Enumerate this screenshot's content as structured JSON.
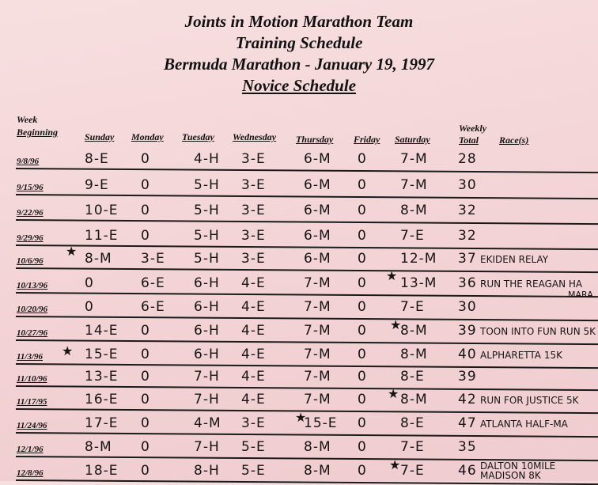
{
  "header": {
    "line1": "Joints in Motion Marathon Team",
    "line2": "Training Schedule",
    "line3": "Bermuda Marathon - January 19, 1997",
    "line4": "Novice Schedule"
  },
  "columns": {
    "week1": "Week",
    "week2": "Beginning",
    "sunday": "Sunday",
    "monday": "Monday",
    "tuesday": "Tuesday",
    "wednesday": "Wednesday",
    "thursday": "Thursday",
    "friday": "Friday",
    "saturday": "Saturday",
    "weekly1": "Weekly",
    "weekly2": "Total",
    "races": "Race(s)"
  },
  "star_glyph": "★",
  "rows": [
    {
      "week": "9/8/96",
      "sun": "8-E",
      "mon": "0",
      "tue": "4-H",
      "wed": "3-E",
      "thu": "6-M",
      "fri": "0",
      "sat": "7-M",
      "total": "28",
      "race": "",
      "race2": ""
    },
    {
      "week": "9/15/96",
      "sun": "9-E",
      "mon": "0",
      "tue": "5-H",
      "wed": "3-E",
      "thu": "6-M",
      "fri": "0",
      "sat": "7-M",
      "total": "30",
      "race": "",
      "race2": ""
    },
    {
      "week": "9/22/96",
      "sun": "10-E",
      "mon": "0",
      "tue": "5-H",
      "wed": "3-E",
      "thu": "6-M",
      "fri": "0",
      "sat": "8-M",
      "total": "32",
      "race": "",
      "race2": ""
    },
    {
      "week": "9/29/96",
      "sun": "11-E",
      "mon": "0",
      "tue": "5-H",
      "wed": "3-E",
      "thu": "6-M",
      "fri": "0",
      "sat": "7-E",
      "total": "32",
      "race": "",
      "race2": ""
    },
    {
      "week": "10/6/96",
      "sun": "8-M",
      "mon": "3-E",
      "tue": "5-H",
      "wed": "3-E",
      "thu": "6-M",
      "fri": "0",
      "sat": "12-M",
      "total": "37",
      "race": "EKIDEN RELAY",
      "race2": ""
    },
    {
      "week": "10/13/96",
      "sun": "0",
      "mon": "6-E",
      "tue": "6-H",
      "wed": "4-E",
      "thu": "7-M",
      "fri": "0",
      "sat": "13-M",
      "total": "36",
      "race": "RUN THE REAGAN HA",
      "race2": "MARA"
    },
    {
      "week": "10/20/96",
      "sun": "0",
      "mon": "6-E",
      "tue": "6-H",
      "wed": "4-E",
      "thu": "7-M",
      "fri": "0",
      "sat": "7-E",
      "total": "30",
      "race": "",
      "race2": ""
    },
    {
      "week": "10/27/96",
      "sun": "14-E",
      "mon": "0",
      "tue": "6-H",
      "wed": "4-E",
      "thu": "7-M",
      "fri": "0",
      "sat": "8-M",
      "total": "39",
      "race": "TOON INTO FUN RUN 5K",
      "race2": ""
    },
    {
      "week": "11/3/96",
      "sun": "15-E",
      "mon": "0",
      "tue": "6-H",
      "wed": "4-E",
      "thu": "7-M",
      "fri": "0",
      "sat": "8-M",
      "total": "40",
      "race": "ALPHARETTA 15K",
      "race2": ""
    },
    {
      "week": "11/10/96",
      "sun": "13-E",
      "mon": "0",
      "tue": "7-H",
      "wed": "4-E",
      "thu": "7-M",
      "fri": "0",
      "sat": "8-E",
      "total": "39",
      "race": "",
      "race2": ""
    },
    {
      "week": "11/17/95",
      "sun": "16-E",
      "mon": "0",
      "tue": "7-H",
      "wed": "4-E",
      "thu": "7-M",
      "fri": "0",
      "sat": "8-M",
      "total": "42",
      "race": "RUN FOR JUSTICE 5K",
      "race2": ""
    },
    {
      "week": "11/24/96",
      "sun": "17-E",
      "mon": "0",
      "tue": "4-M",
      "wed": "3-E",
      "thu": "15-E",
      "fri": "0",
      "sat": "8-E",
      "total": "47",
      "race": "ATLANTA HALF-MA",
      "race2": ""
    },
    {
      "week": "12/1/96",
      "sun": "8-M",
      "mon": "0",
      "tue": "7-H",
      "wed": "5-E",
      "thu": "8-M",
      "fri": "0",
      "sat": "7-E",
      "total": "35",
      "race": "",
      "race2": ""
    },
    {
      "week": "12/8/96",
      "sun": "18-E",
      "mon": "0",
      "tue": "8-H",
      "wed": "5-E",
      "thu": "8-M",
      "fri": "0",
      "sat": "7-E",
      "total": "46",
      "race": "DALTON 10MILE",
      "race2": "MADISON 8K"
    }
  ]
}
